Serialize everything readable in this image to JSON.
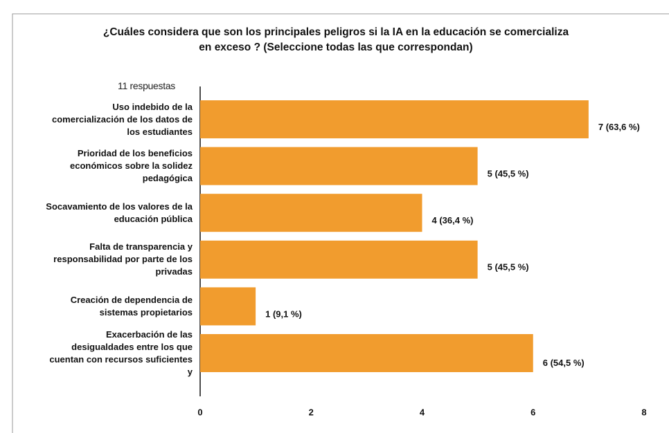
{
  "chart_data": {
    "type": "bar",
    "title": "¿Cuáles considera que son los principales peligros si la IA en la educación se comercializa en exceso ? (Seleccione todas las que correspondan)",
    "subtitle": "11 respuestas",
    "categories": [
      "Uso indebido de la comercialización de los datos de los estudiantes",
      "Prioridad de los beneficios económicos sobre la solidez pedagógica",
      "Socavamiento de los valores de la educación pública",
      "Falta de transparencia y responsabilidad por parte de los privadas",
      "Creación de dependencia de sistemas propietarios",
      "Exacerbación de las desigualdades entre los que cuentan con recursos suficientes y"
    ],
    "values": [
      7,
      5,
      4,
      5,
      1,
      6
    ],
    "value_labels": [
      "7 (63,6 %)",
      "5 (45,5 %)",
      "4 (36,4 %)",
      "5 (45,5 %)",
      "1 (9,1 %)",
      "6 (54,5 %)"
    ],
    "color": "#f19c2e",
    "xlim": [
      0,
      8
    ],
    "xticks": [
      0,
      2,
      4,
      6,
      8
    ]
  }
}
